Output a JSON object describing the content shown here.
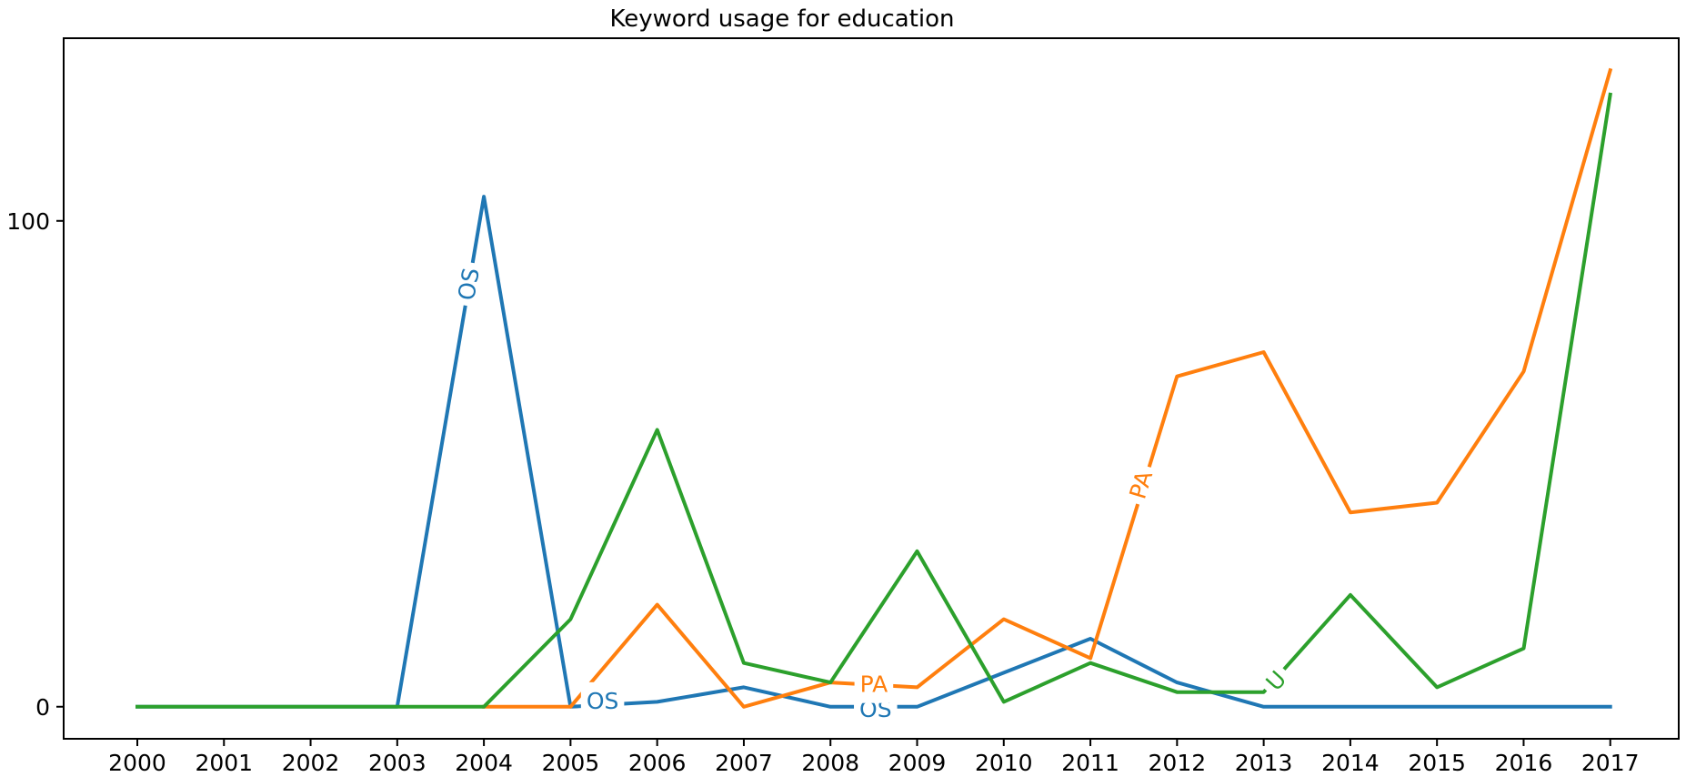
{
  "title": "Keyword usage for education",
  "chart_data": {
    "type": "line",
    "title": "Keyword usage for education",
    "xlabel": "",
    "ylabel": "",
    "grid": false,
    "legend_position": "none (inline line labels)",
    "background": "#ffffff",
    "axis_color": "#000000",
    "xlim": [
      1999.15,
      2017.79
    ],
    "ylim": [
      -6.6,
      137.6
    ],
    "x_ticks": [
      2000,
      2001,
      2002,
      2003,
      2004,
      2005,
      2006,
      2007,
      2008,
      2009,
      2010,
      2011,
      2012,
      2013,
      2014,
      2015,
      2016,
      2017
    ],
    "y_ticks": [
      0,
      100
    ],
    "series": [
      {
        "name": "OS",
        "color": "#1f77b4",
        "x": [
          2000,
          2001,
          2002,
          2003,
          2004,
          2005,
          2006,
          2007,
          2008,
          2009,
          2010,
          2011,
          2012,
          2013,
          2014,
          2015,
          2016,
          2017
        ],
        "y": [
          0,
          0,
          0,
          0,
          105,
          0,
          1,
          4,
          0,
          0,
          7,
          14,
          5,
          0,
          0,
          0,
          0,
          0
        ]
      },
      {
        "name": "PA",
        "color": "#ff7f0e",
        "x": [
          2004,
          2005,
          2006,
          2007,
          2008,
          2009,
          2010,
          2011,
          2012,
          2013,
          2014,
          2015,
          2016,
          2017
        ],
        "y": [
          0,
          0,
          21,
          0,
          5,
          4,
          18,
          10,
          68,
          73,
          40,
          42,
          69,
          131
        ]
      },
      {
        "name": "U",
        "color": "#2ca02c",
        "x": [
          2000,
          2001,
          2002,
          2003,
          2004,
          2005,
          2006,
          2007,
          2008,
          2009,
          2010,
          2011,
          2012,
          2013,
          2014,
          2015,
          2016,
          2017
        ],
        "y": [
          0,
          0,
          0,
          0,
          0,
          18,
          57,
          9,
          5,
          32,
          1,
          9,
          3,
          3,
          23,
          4,
          12,
          126
        ]
      }
    ],
    "inline_labels": [
      {
        "text": "OS",
        "series": "OS",
        "color": "#1f77b4",
        "x": 2003.82,
        "y": 87,
        "rotation": -80
      },
      {
        "text": "OS",
        "series": "OS",
        "color": "#1f77b4",
        "x": 2005.37,
        "y": 1.3,
        "rotation": 0
      },
      {
        "text": "OS",
        "series": "OS",
        "color": "#1f77b4",
        "x": 2008.52,
        "y": -0.4,
        "rotation": 0
      },
      {
        "text": "PA",
        "series": "PA",
        "color": "#ff7f0e",
        "x": 2008.5,
        "y": 4.7,
        "rotation": 0
      },
      {
        "text": "PA",
        "series": "PA",
        "color": "#ff7f0e",
        "x": 2011.58,
        "y": 45.7,
        "rotation": -73
      },
      {
        "text": "U",
        "series": "U",
        "color": "#2ca02c",
        "x": 2013.14,
        "y": 5.4,
        "rotation": -48
      }
    ]
  }
}
